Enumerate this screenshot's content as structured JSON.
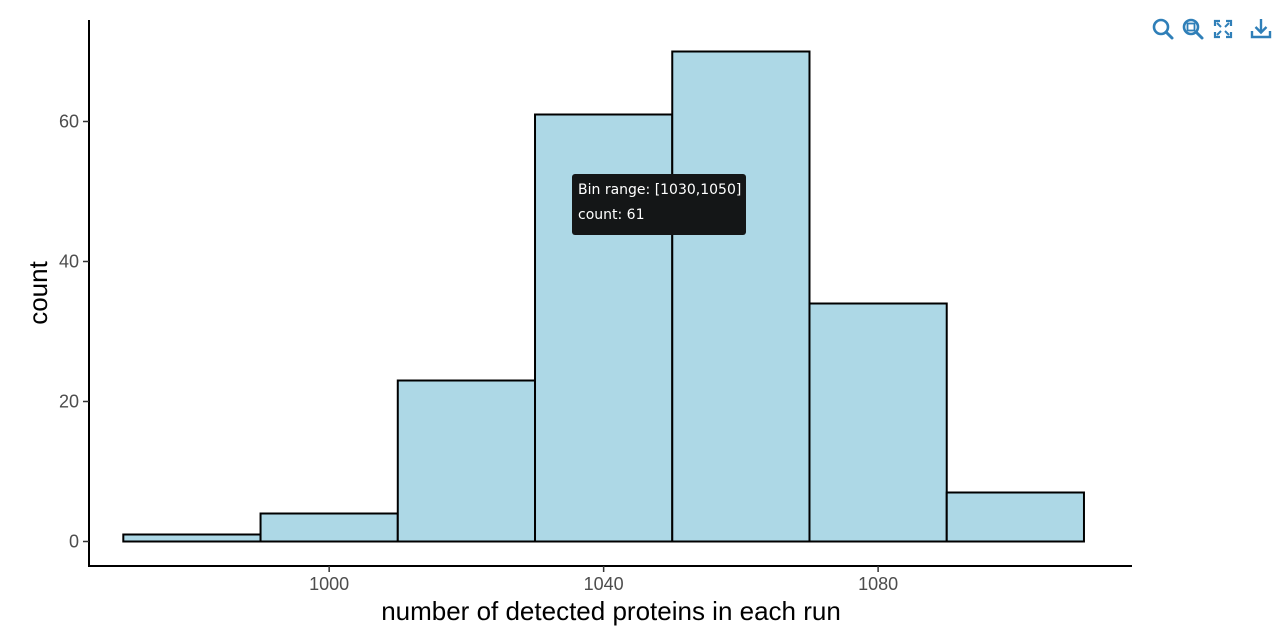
{
  "chart_data": {
    "type": "bar",
    "subtype": "histogram",
    "bins": [
      {
        "start": 970,
        "end": 990,
        "count": 1
      },
      {
        "start": 990,
        "end": 1010,
        "count": 4
      },
      {
        "start": 1010,
        "end": 1030,
        "count": 23
      },
      {
        "start": 1030,
        "end": 1050,
        "count": 61
      },
      {
        "start": 1050,
        "end": 1070,
        "count": 70
      },
      {
        "start": 1070,
        "end": 1090,
        "count": 34
      },
      {
        "start": 1090,
        "end": 1110,
        "count": 7
      }
    ],
    "xlabel": "number of detected proteins in each run",
    "ylabel": "count",
    "x_ticks": [
      "1000",
      "1040",
      "1080"
    ],
    "x_tick_values": [
      1000,
      1040,
      1080
    ],
    "y_ticks": [
      "0",
      "20",
      "40",
      "60"
    ],
    "y_tick_values": [
      0,
      20,
      40,
      60
    ],
    "xlim": [
      965,
      1117
    ],
    "ylim": [
      -3.5,
      74.5
    ],
    "grid": false,
    "bar_color": "#add8e6",
    "bar_edge_color": "#000000"
  },
  "tooltip": {
    "line1": "Bin range: [1030,1050]",
    "line2": "count: 61"
  },
  "toolbar": {
    "icon_color": "#2f7fb8",
    "buttons": [
      {
        "name": "zoom-icon"
      },
      {
        "name": "zoom-reset-icon"
      },
      {
        "name": "fullscreen-icon"
      },
      {
        "name": "download-icon"
      }
    ]
  }
}
